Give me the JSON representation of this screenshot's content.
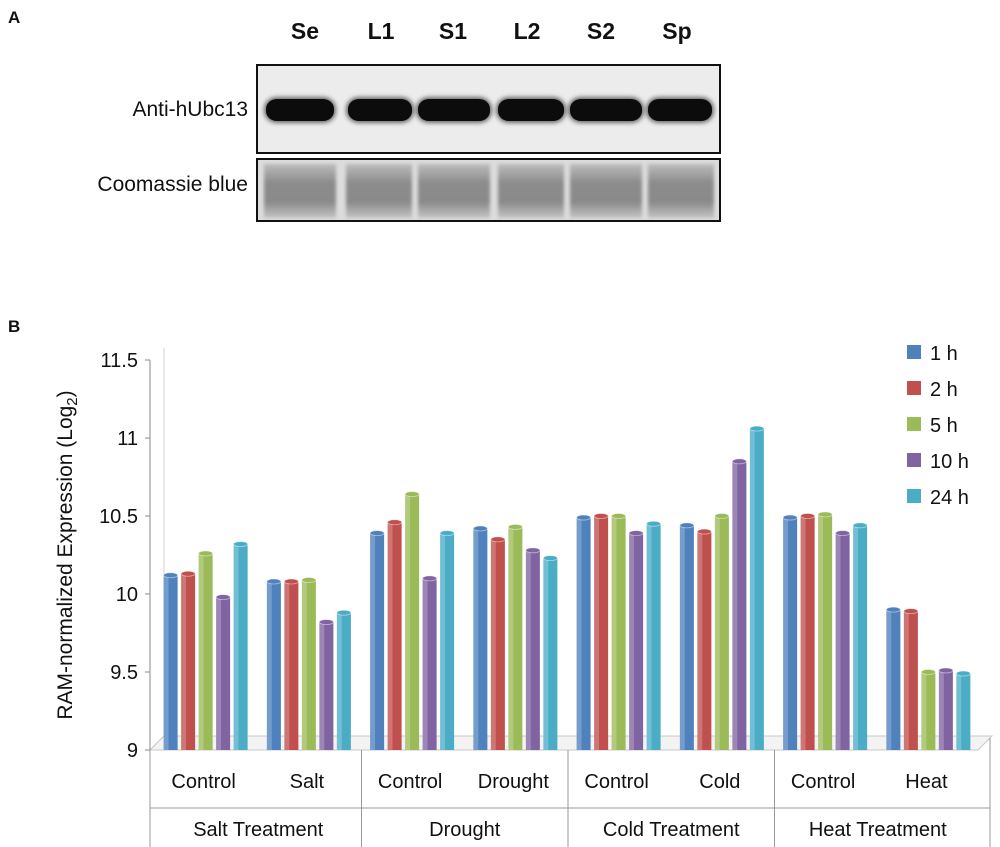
{
  "panel_a": {
    "letter": "A",
    "lanes": [
      "Se",
      "L1",
      "S1",
      "L2",
      "S2",
      "Sp"
    ],
    "rows": [
      {
        "label": "Anti-hUbc13"
      },
      {
        "label": "Coomassie blue"
      }
    ]
  },
  "panel_b": {
    "letter": "B"
  },
  "chart_data": {
    "type": "bar",
    "title": "",
    "ylabel_main": "RAM-normalized Expression (Log",
    "ylabel_sub": "2",
    "ylabel_close": ")",
    "ylim": [
      9,
      11.5
    ],
    "yticks": [
      "9",
      "9.5",
      "10",
      "10.5",
      "11",
      "11.5"
    ],
    "categories": [
      "Control",
      "Salt",
      "Control",
      "Drought",
      "Control",
      "Cold",
      "Control",
      "Heat"
    ],
    "groups": [
      "Salt Treatment",
      "Drought",
      "Cold Treatment",
      "Heat Treatment"
    ],
    "series": [
      {
        "name": "1 h",
        "color": "#4f81bd",
        "values": [
          10.12,
          10.08,
          10.39,
          10.42,
          10.49,
          10.44,
          10.49,
          9.9
        ]
      },
      {
        "name": "2 h",
        "color": "#c0504d",
        "values": [
          10.13,
          10.08,
          10.46,
          10.35,
          10.5,
          10.4,
          10.5,
          9.89
        ]
      },
      {
        "name": "5 h",
        "color": "#9bbb59",
        "values": [
          10.26,
          10.09,
          10.64,
          10.43,
          10.5,
          10.5,
          10.51,
          9.5
        ]
      },
      {
        "name": "10 h",
        "color": "#8064a2",
        "values": [
          9.98,
          9.82,
          10.1,
          10.28,
          10.39,
          10.85,
          10.39,
          9.51
        ]
      },
      {
        "name": "24 h",
        "color": "#4bacc6",
        "values": [
          10.32,
          9.88,
          10.39,
          10.23,
          10.45,
          11.06,
          10.44,
          9.49
        ]
      }
    ],
    "legend_position": "top-right",
    "grid": false
  }
}
